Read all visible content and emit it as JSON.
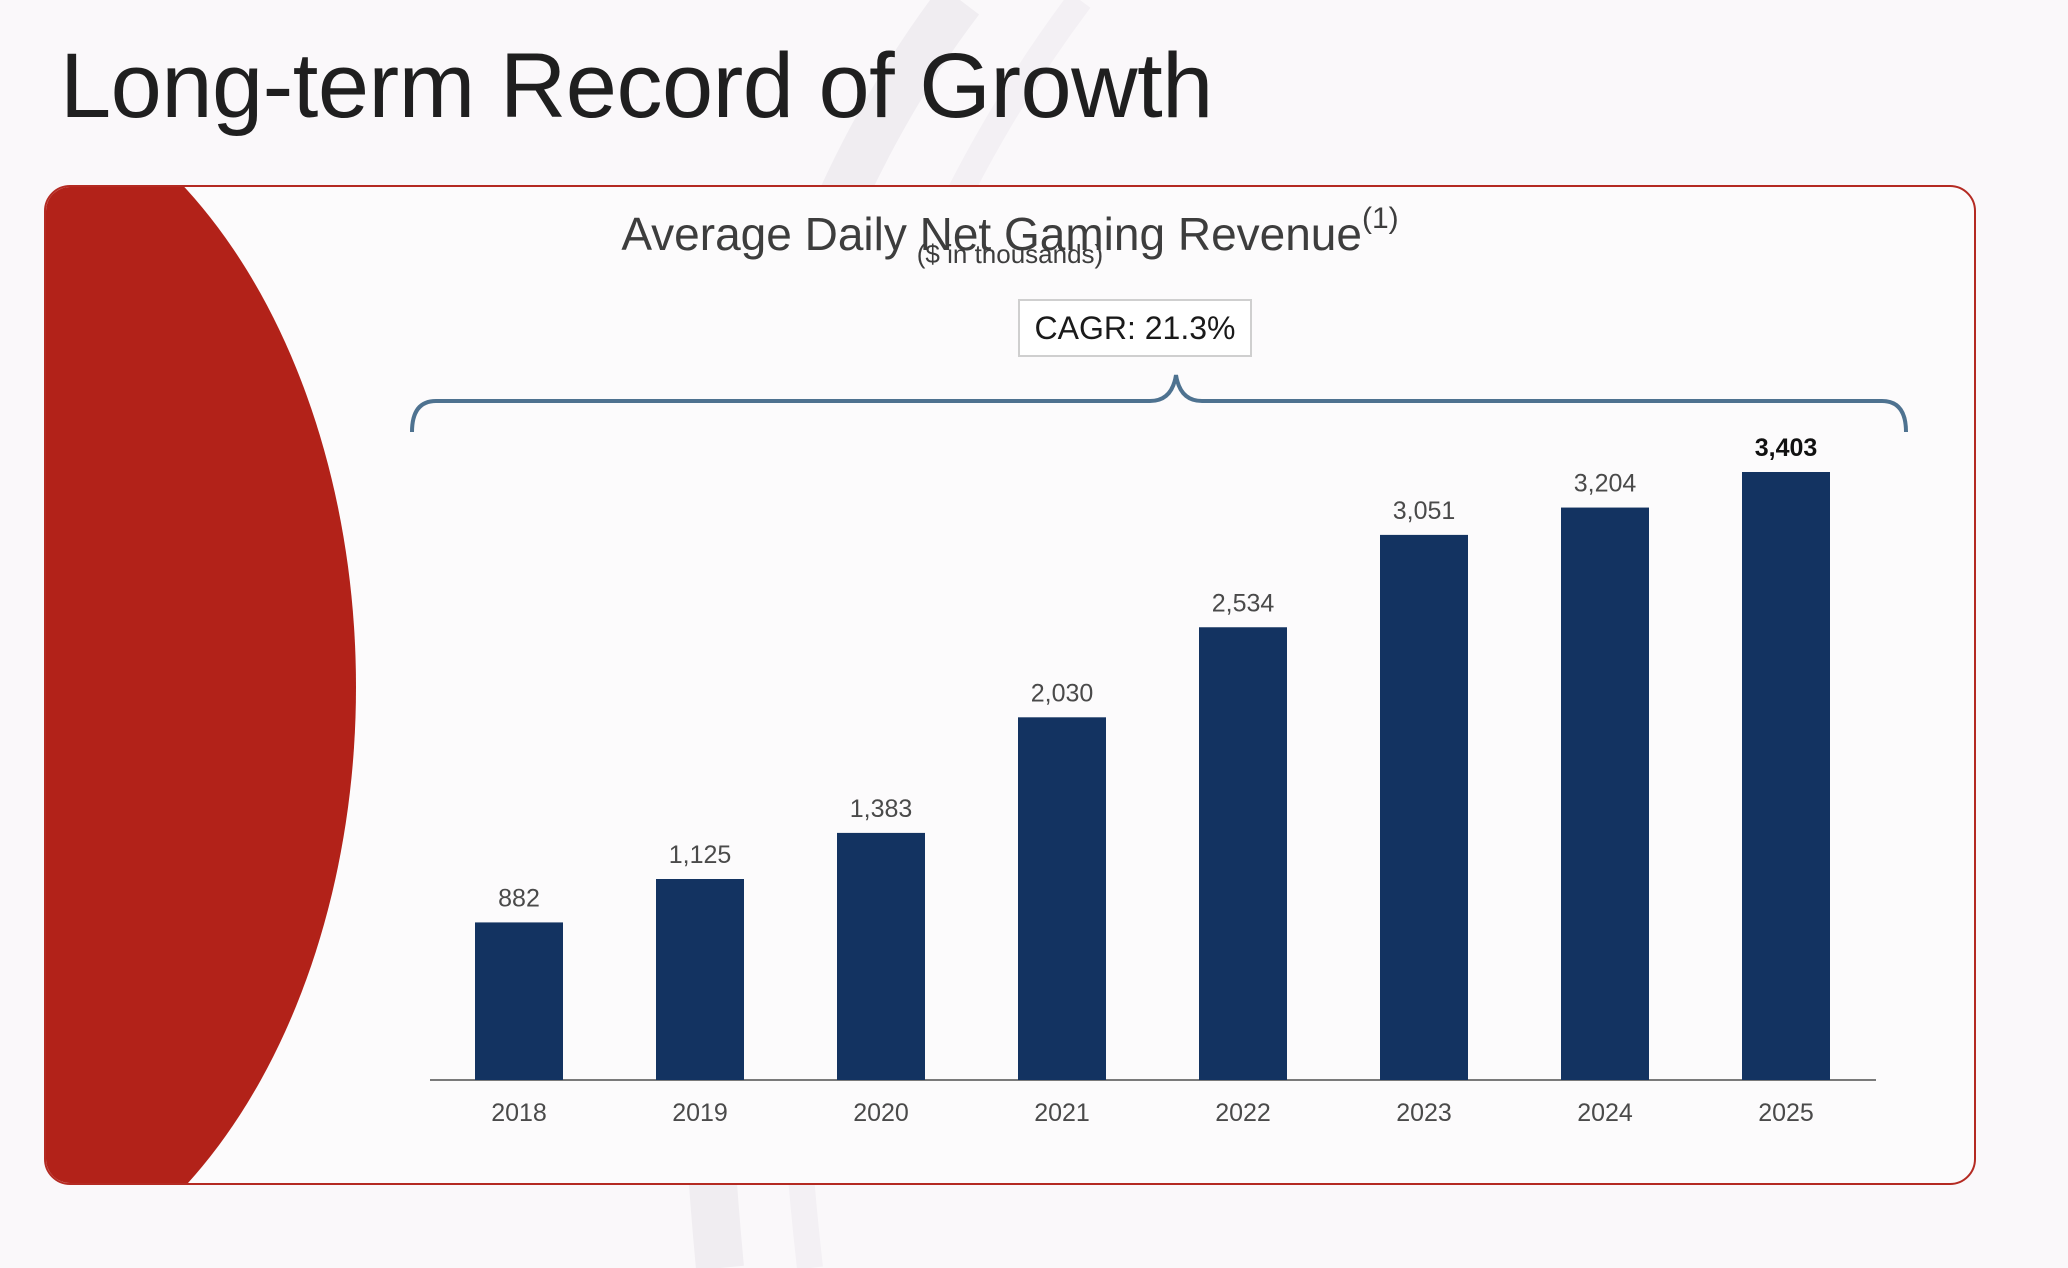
{
  "slide": {
    "title": "Long-term Record of Growth"
  },
  "annotation": {
    "cagr": "CAGR: 21.3%"
  },
  "colors": {
    "bar": "#133361",
    "accent_red": "#b22219",
    "bracket": "#4e7290",
    "axis": "#7a7a7a"
  },
  "chart_data": {
    "type": "bar",
    "title": "Average Daily Net Gaming Revenue",
    "title_footnote": "(1)",
    "subtitle": "($ in thousands)",
    "categories": [
      "2018",
      "2019",
      "2020",
      "2021",
      "2022",
      "2023",
      "2024",
      "2025"
    ],
    "values": [
      882,
      1125,
      1383,
      2030,
      2534,
      3051,
      3204,
      3403
    ],
    "value_labels": [
      "882",
      "1,125",
      "1,383",
      "2,030",
      "2,534",
      "3,051",
      "3,204",
      "3,403"
    ],
    "highlight_index": 7,
    "xlabel": "",
    "ylabel": "",
    "ylim": [
      0,
      3403
    ],
    "grid": false,
    "legend": "none"
  }
}
